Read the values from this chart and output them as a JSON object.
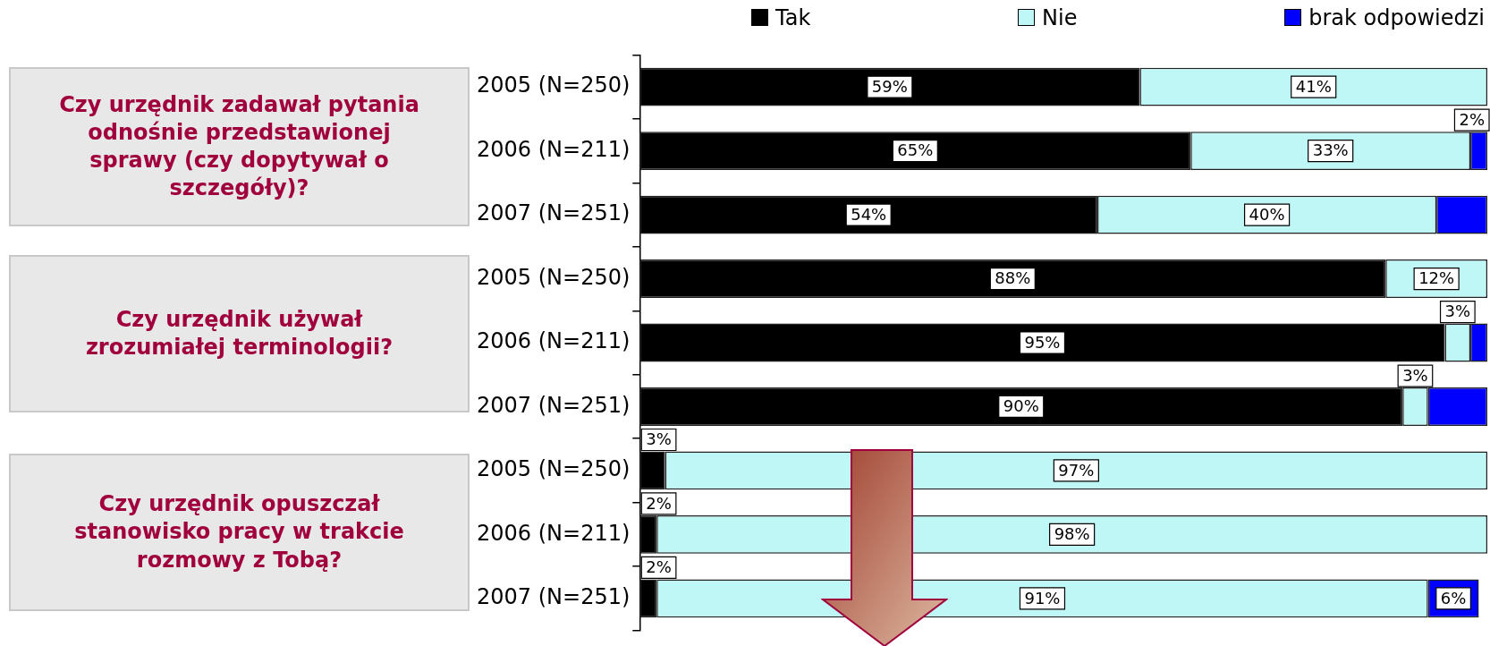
{
  "chart_data": {
    "type": "bar",
    "orientation": "horizontal",
    "stacked": true,
    "categories": [
      "2005 (N=250)",
      "2006 (N=211)",
      "2007 (N=251)",
      "2005 (N=250)",
      "2006 (N=211)",
      "2007 (N=251)",
      "2005 (N=250)",
      "2006 (N=211)",
      "2007 (N=251)"
    ],
    "series": [
      {
        "name": "Tak",
        "color": "#000000",
        "values": [
          59,
          65,
          54,
          88,
          95,
          90,
          3,
          2,
          2
        ],
        "value_labels": [
          "59%",
          "65%",
          "54%",
          "88%",
          "95%",
          "90%",
          "3%",
          "2%",
          "2%"
        ]
      },
      {
        "name": "Nie",
        "color": "#bff7f7",
        "values": [
          41,
          33,
          40,
          12,
          3,
          3,
          97,
          98,
          91
        ],
        "value_labels": [
          "41%",
          "33%",
          "40%",
          "12%",
          "3%",
          "3%",
          "97%",
          "98%",
          "91%"
        ]
      },
      {
        "name": "brak odpowiedzi",
        "color": "#0000ff",
        "values": [
          0,
          2,
          6,
          0,
          2,
          7,
          0,
          0,
          6
        ],
        "value_labels": [
          null,
          "2%",
          null,
          null,
          null,
          null,
          null,
          null,
          "6%"
        ]
      }
    ],
    "xlim": [
      0,
      100
    ],
    "tick_labels": "y",
    "grid": false,
    "legend": "top",
    "annotations": [
      "Czy urzędnik zadawał pytania odnośnie przedstawionej sprawy (czy dopytywał o szczegóły)?",
      "Czy urzędnik używał zrozumiałej terminologii?",
      "Czy urzędnik opuszczał stanowisko pracy w trakcie rozmowy z Tobą?"
    ]
  }
}
